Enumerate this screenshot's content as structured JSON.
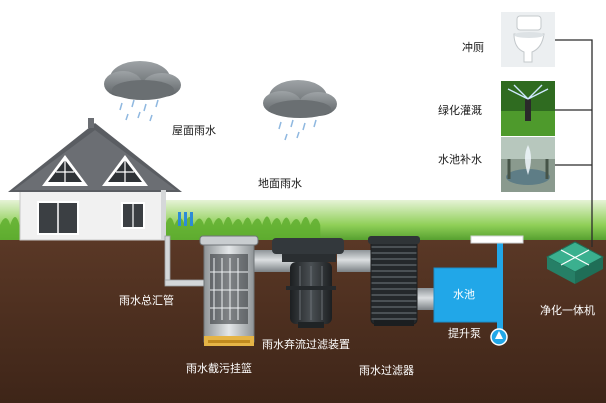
{
  "labels": {
    "roof_rain": "屋面雨水",
    "ground_rain": "地面雨水",
    "main_pipe": "雨水总汇管",
    "dirt_basket": "雨水截污挂篮",
    "diversion_filter": "雨水弃流过滤装置",
    "rain_filter": "雨水过滤器",
    "pool": "水池",
    "lift_pump": "提升泵",
    "purifier": "净化一体机",
    "flush_toilet": "冲厕",
    "green_irrigation": "绿化灌溉",
    "pool_refill": "水池补水"
  },
  "colors": {
    "soil": "#4a2e1f",
    "grass": "#6dbb3a",
    "pool": "#21a7e8",
    "pipe": "#bfc3c6",
    "house_wall": "#f2f2f2",
    "roof": "#5a5d62",
    "purifier_box": "#2c9c7d"
  }
}
